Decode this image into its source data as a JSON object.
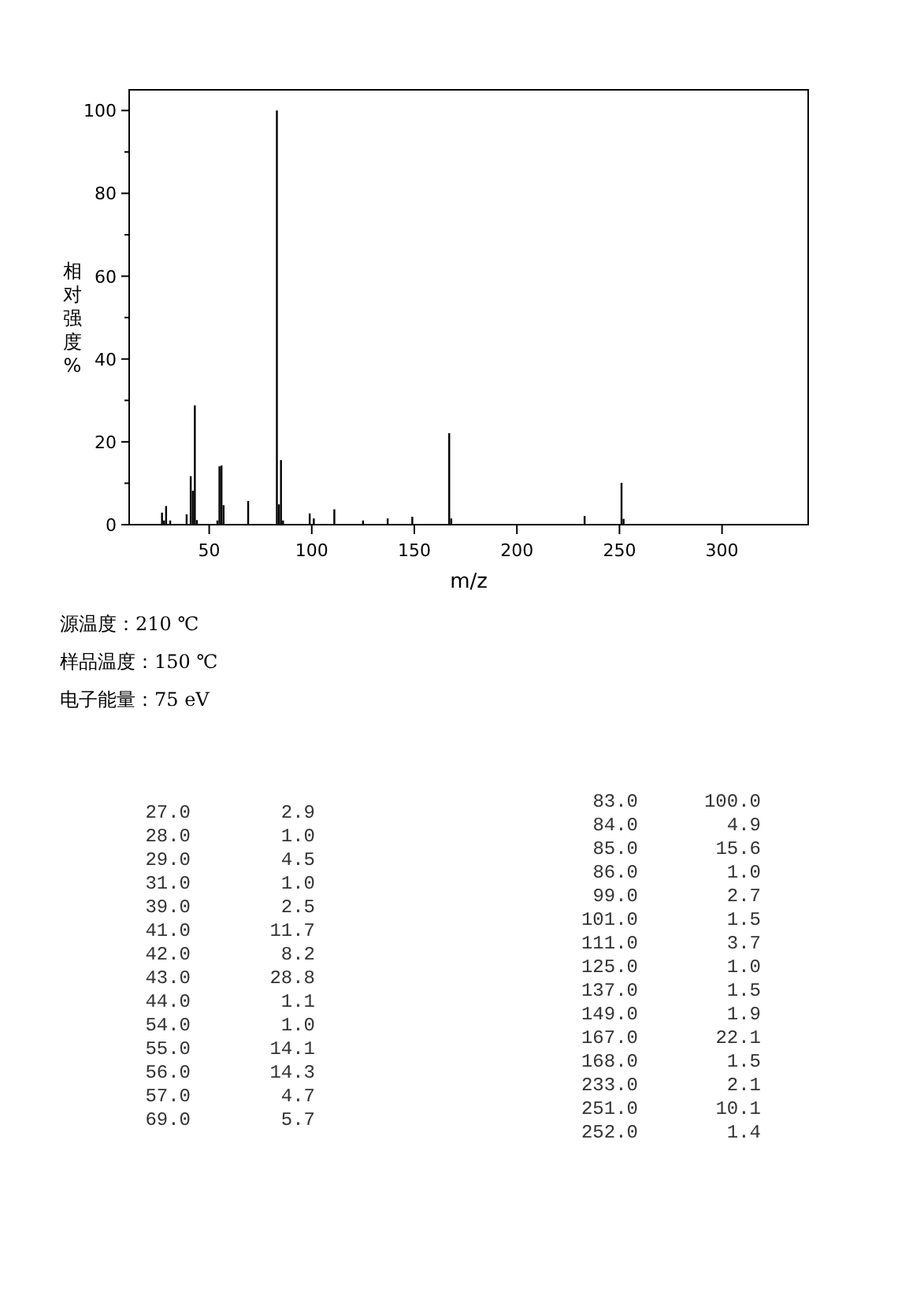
{
  "chart_data": [
    {
      "type": "bar",
      "xlabel": "m/z",
      "ylabel": "相对强度%",
      "x": [
        27,
        28,
        29,
        31,
        39,
        41,
        42,
        43,
        44,
        54,
        55,
        56,
        57,
        69,
        83,
        84,
        85,
        86,
        99,
        101,
        111,
        125,
        137,
        149,
        167,
        168,
        233,
        251,
        252
      ],
      "values": [
        2.9,
        1.0,
        4.5,
        1.0,
        2.5,
        11.7,
        8.2,
        28.8,
        1.1,
        1.0,
        14.1,
        14.3,
        4.7,
        5.7,
        100.0,
        4.9,
        15.6,
        1.0,
        2.7,
        1.5,
        3.7,
        1.0,
        1.5,
        1.9,
        22.1,
        1.5,
        2.1,
        10.1,
        1.4
      ],
      "color": "#000000",
      "xlim": [
        11,
        342
      ],
      "ylim": [
        0,
        105
      ],
      "xticks": [
        50,
        100,
        150,
        200,
        250,
        300
      ],
      "yticks": [
        0,
        {
          "value": 10,
          "label": null
        },
        20,
        {
          "value": 30,
          "label": null
        },
        40,
        {
          "value": 50,
          "label": null
        },
        60,
        {
          "value": 70,
          "label": null
        },
        80,
        {
          "value": 90,
          "label": null
        },
        100
      ],
      "annotations": [
        "源温度：210  ℃",
        "样品温度：150 ℃",
        "电子能量：75 eV"
      ]
    },
    {
      "type": "other",
      "categories": [
        "27.0",
        "28.0",
        "29.0",
        "31.0",
        "39.0",
        "41.0",
        "42.0",
        "43.0",
        "44.0",
        "54.0",
        "55.0",
        "56.0",
        "57.0",
        "69.0",
        "83.0",
        "84.0",
        "85.0",
        "86.0",
        "99.0",
        "101.0",
        "111.0",
        "125.0",
        "137.0",
        "149.0",
        "167.0",
        "168.0",
        "233.0",
        "251.0",
        "252.0"
      ],
      "value_labels": [
        "2.9",
        "1.0",
        "4.5",
        "1.0",
        "2.5",
        "11.7",
        "8.2",
        "28.8",
        "1.1",
        "1.0",
        "14.1",
        "14.3",
        "4.7",
        "5.7",
        "100.0",
        "4.9",
        "15.6",
        "1.0",
        "2.7",
        "1.5",
        "3.7",
        "1.0",
        "1.5",
        "1.9",
        "22.1",
        "1.5",
        "2.1",
        "10.1",
        "1.4"
      ]
    }
  ]
}
